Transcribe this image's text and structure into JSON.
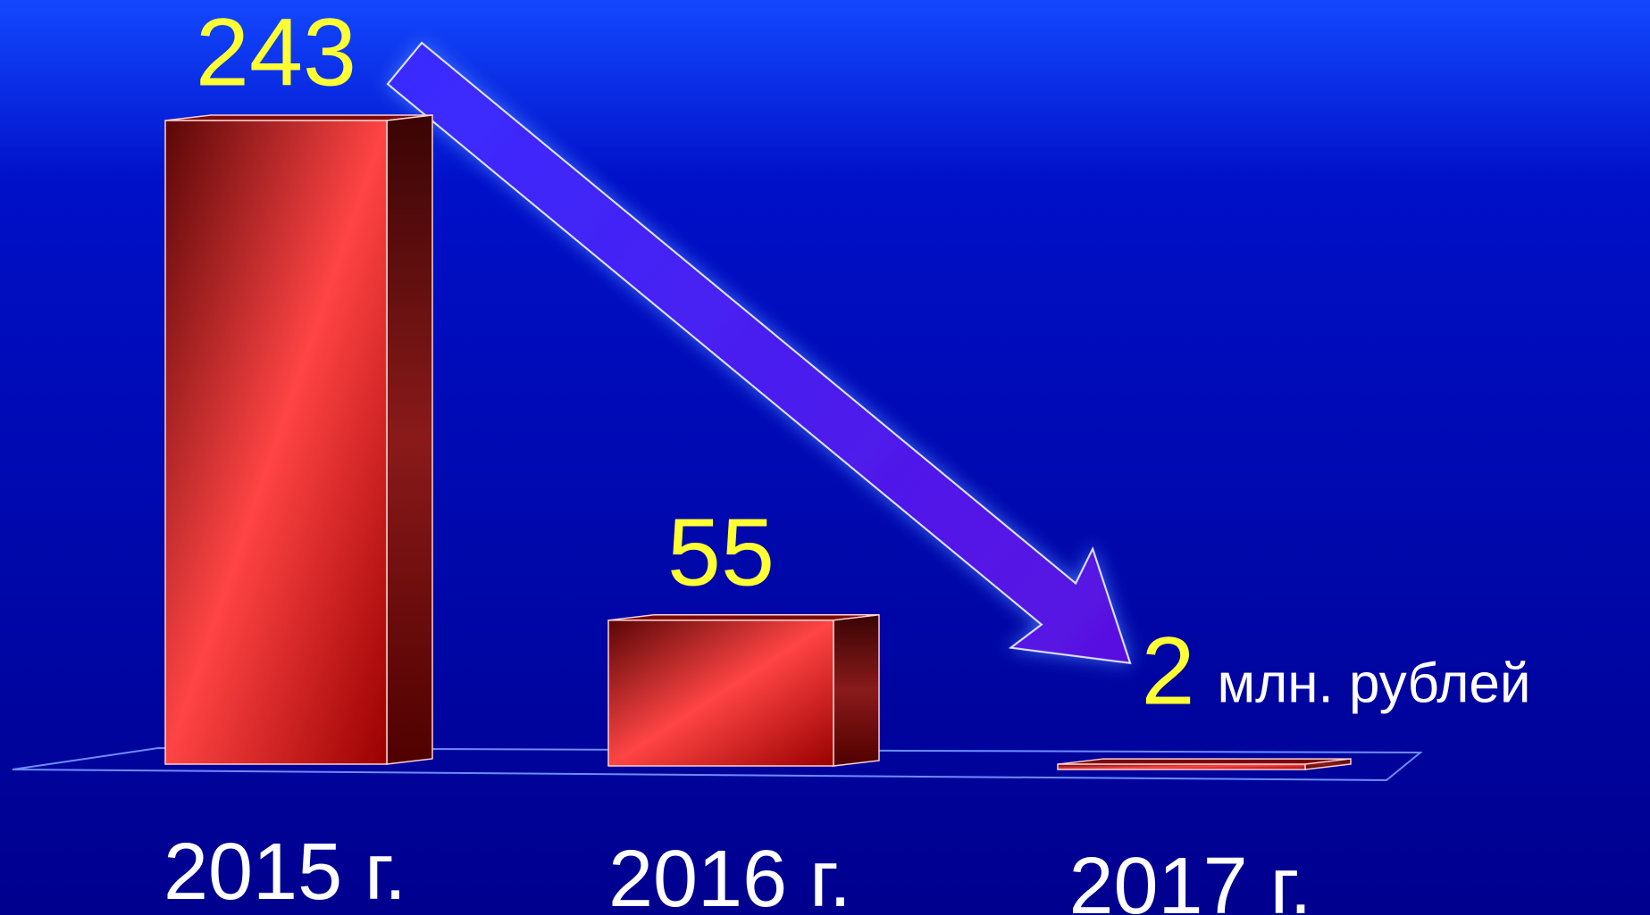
{
  "chart_data": {
    "type": "bar3d",
    "categories": [
      "2015 г.",
      "2016 г.",
      "2017 г."
    ],
    "values": [
      243,
      55,
      2
    ],
    "unit_label": "млн. рублей",
    "color": "#e02a2a"
  }
}
